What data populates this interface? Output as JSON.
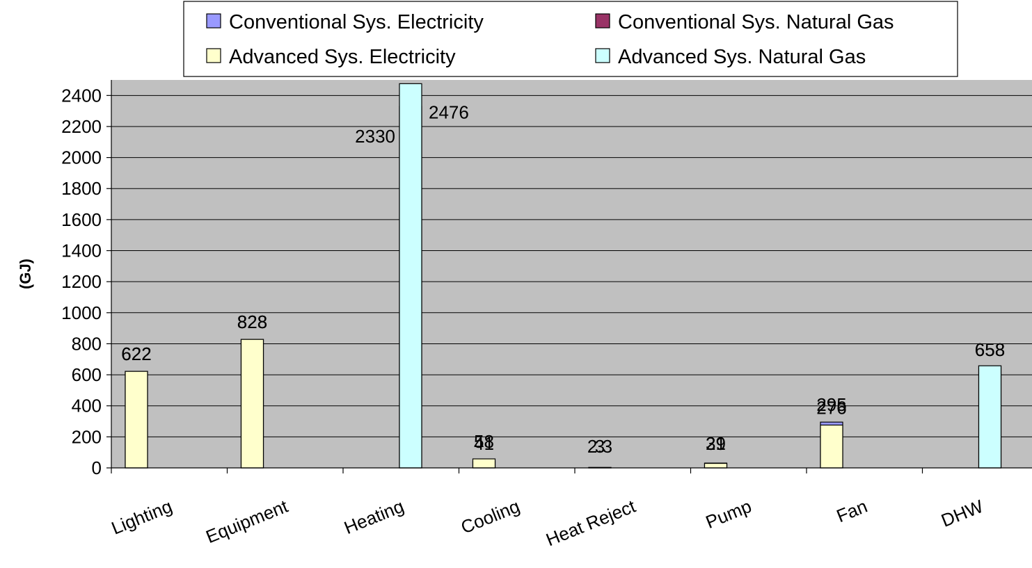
{
  "chart_data": {
    "type": "bar",
    "ylabel": "(GJ)",
    "xlabel": "",
    "ylim": [
      0,
      2500
    ],
    "yticks": [
      0,
      200,
      400,
      600,
      800,
      1000,
      1200,
      1400,
      1600,
      1800,
      2000,
      2200,
      2400
    ],
    "grid": true,
    "legend_position": "top",
    "categories": [
      "Lighting",
      "Equipment",
      "Heating",
      "Cooling",
      "Heat Reject",
      "Pump",
      "Fan",
      "DHW"
    ],
    "series": [
      {
        "name": "Conventional Sys. Electricity",
        "color": "#9999ff",
        "values": [
          622,
          828,
          null,
          41,
          2.3,
          31,
          295,
          null
        ],
        "labels": [
          "622",
          "828",
          "",
          "41",
          "2.3",
          "31",
          "295",
          ""
        ]
      },
      {
        "name": "Conventional Sys. Natural Gas",
        "color": "#993366",
        "values": [
          null,
          null,
          2330,
          null,
          null,
          null,
          null,
          658
        ],
        "labels": [
          "",
          "",
          "2330",
          "",
          "",
          "",
          "",
          "658"
        ]
      },
      {
        "name": "Advanced Sys. Electricity",
        "color": "#ffffcc",
        "values": [
          622,
          828,
          null,
          58,
          3,
          29,
          276,
          null
        ],
        "labels": [
          "622",
          "828",
          "",
          "58",
          "3",
          "29",
          "276",
          ""
        ]
      },
      {
        "name": "Advanced Sys. Natural Gas",
        "color": "#ccffff",
        "values": [
          null,
          null,
          2476,
          null,
          null,
          null,
          null,
          658
        ],
        "labels": [
          "",
          "",
          "2476",
          "",
          "",
          "",
          "",
          "658"
        ]
      }
    ],
    "plot_background": "#c0c0c0"
  }
}
